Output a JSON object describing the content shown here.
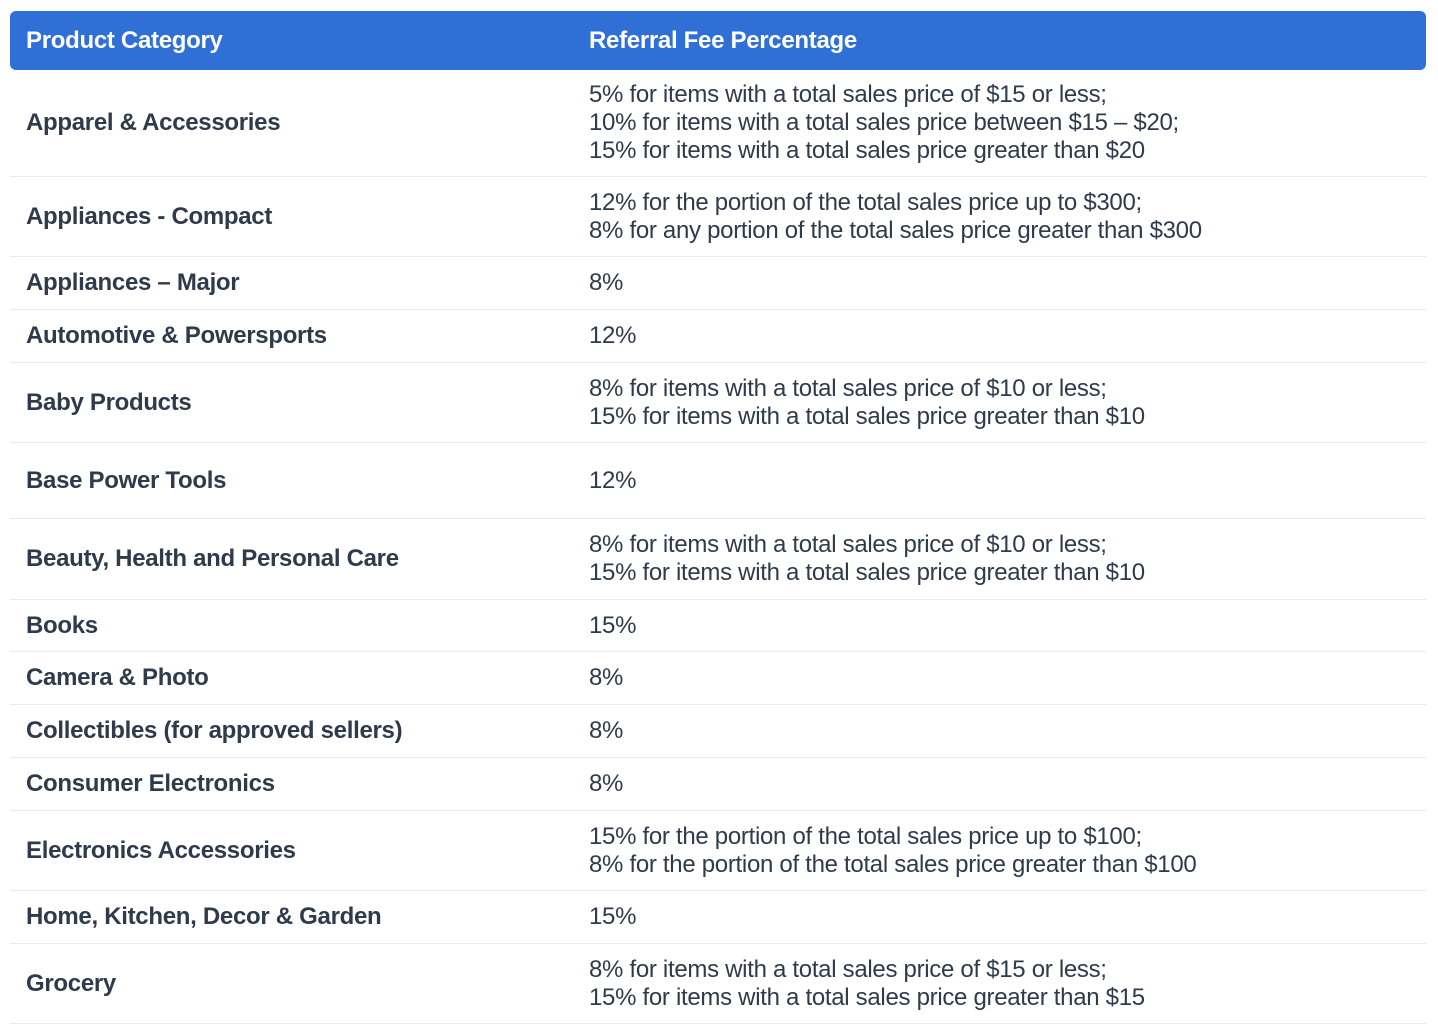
{
  "header": {
    "col_category": "Product Category",
    "col_fee": "Referral Fee Percentage"
  },
  "rows": [
    {
      "category": "Apparel & Accessories",
      "fee_lines": [
        "5% for items with a total sales price of $15 or less;",
        "10% for items with a total sales price between $15 – $20;",
        "15% for items with a total sales price greater than $20"
      ]
    },
    {
      "category": "Appliances - Compact",
      "fee_lines": [
        "12% for the portion of the total sales price up to $300;",
        "8% for any portion of the total sales price greater than $300"
      ]
    },
    {
      "category": "Appliances – Major",
      "fee_lines": [
        "8%"
      ]
    },
    {
      "category": "Automotive & Powersports",
      "fee_lines": [
        "12%"
      ]
    },
    {
      "category": "Baby Products",
      "fee_lines": [
        "8% for items with a total sales price of $10 or less;",
        "15% for items with a total sales price greater than $10"
      ]
    },
    {
      "category": "Base Power Tools",
      "fee_lines": [
        "12%"
      ]
    },
    {
      "category": "Beauty, Health and Personal Care",
      "fee_lines": [
        "8% for items with a total sales price of $10 or less;",
        "15% for items with a total sales price greater than $10"
      ]
    },
    {
      "category": "Books",
      "fee_lines": [
        "15%"
      ]
    },
    {
      "category": "Camera & Photo",
      "fee_lines": [
        "8%"
      ]
    },
    {
      "category": "Collectibles (for approved sellers)",
      "fee_lines": [
        "8%"
      ]
    },
    {
      "category": "Consumer Electronics",
      "fee_lines": [
        "8%"
      ]
    },
    {
      "category": "Electronics Accessories",
      "fee_lines": [
        "15% for the portion of the total sales price up to $100;",
        "8% for the portion of the total sales price greater than $100"
      ]
    },
    {
      "category": "Home, Kitchen, Decor & Garden",
      "fee_lines": [
        "15%"
      ]
    },
    {
      "category": "Grocery",
      "fee_lines": [
        "8% for items with a total sales price of $15 or less;",
        "15% for items with a total sales price greater than $15"
      ]
    }
  ]
}
